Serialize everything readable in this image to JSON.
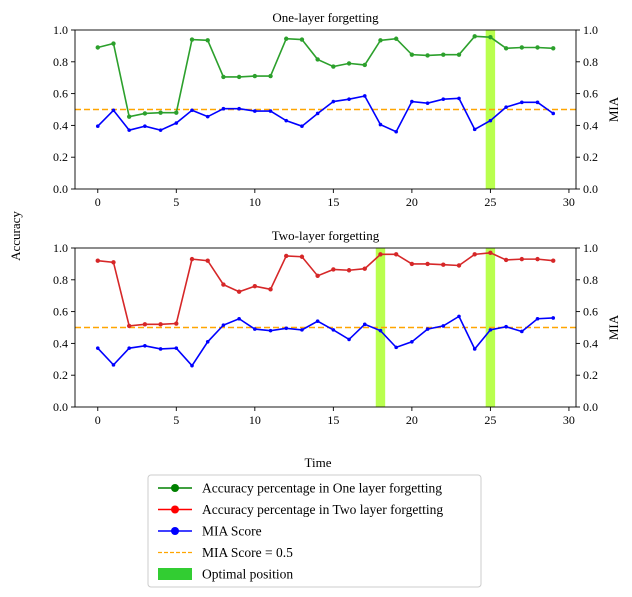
{
  "chart_data": {
    "type": "line",
    "shared_ylabel": "Accuracy",
    "shared_xlabel": "Time",
    "x_ticks": [
      0,
      5,
      10,
      15,
      20,
      25,
      30
    ],
    "y_ticks": [
      0.0,
      0.2,
      0.4,
      0.6,
      0.8,
      1.0
    ],
    "y_tick_labels": [
      "0.0",
      "0.2",
      "0.4",
      "0.6",
      "0.8",
      "1.0"
    ],
    "xlim": [
      -1.45,
      30.45
    ],
    "ylim": [
      0,
      1
    ],
    "threshold": 0.5,
    "colors": {
      "one_layer": "#2ca02c",
      "two_layer": "#d62728",
      "mia": "#0000ff",
      "threshold": "#ffa500",
      "optimal": "#adff2f"
    },
    "panels": [
      {
        "title": "One-layer forgetting",
        "right_ylabel": "MIA",
        "x": [
          0,
          1,
          2,
          3,
          4,
          5,
          6,
          7,
          8,
          9,
          10,
          11,
          12,
          13,
          14,
          15,
          16,
          17,
          18,
          19,
          20,
          21,
          22,
          23,
          24,
          25,
          26,
          27,
          28,
          29
        ],
        "accuracy": [
          0.89,
          0.915,
          0.455,
          0.475,
          0.48,
          0.48,
          0.94,
          0.935,
          0.705,
          0.705,
          0.71,
          0.71,
          0.945,
          0.94,
          0.815,
          0.77,
          0.79,
          0.78,
          0.935,
          0.945,
          0.845,
          0.84,
          0.845,
          0.845,
          0.96,
          0.955,
          0.885,
          0.89,
          0.89,
          0.885
        ],
        "mia": [
          0.395,
          0.495,
          0.37,
          0.395,
          0.37,
          0.415,
          0.495,
          0.455,
          0.505,
          0.505,
          0.49,
          0.49,
          0.43,
          0.395,
          0.475,
          0.55,
          0.565,
          0.585,
          0.405,
          0.36,
          0.55,
          0.54,
          0.565,
          0.57,
          0.375,
          0.43,
          0.515,
          0.545,
          0.545,
          0.475
        ],
        "optimal_spans": [
          [
            24.7,
            25.3
          ]
        ]
      },
      {
        "title": "Two-layer forgetting",
        "right_ylabel": "MIA",
        "x": [
          0,
          1,
          2,
          3,
          4,
          5,
          6,
          7,
          8,
          9,
          10,
          11,
          12,
          13,
          14,
          15,
          16,
          17,
          18,
          19,
          20,
          21,
          22,
          23,
          24,
          25,
          26,
          27,
          28,
          29
        ],
        "accuracy": [
          0.92,
          0.91,
          0.51,
          0.52,
          0.52,
          0.525,
          0.93,
          0.92,
          0.77,
          0.725,
          0.76,
          0.74,
          0.95,
          0.945,
          0.825,
          0.865,
          0.86,
          0.87,
          0.96,
          0.96,
          0.9,
          0.9,
          0.895,
          0.89,
          0.96,
          0.97,
          0.925,
          0.93,
          0.93,
          0.92
        ],
        "mia": [
          0.37,
          0.265,
          0.37,
          0.385,
          0.365,
          0.37,
          0.26,
          0.41,
          0.515,
          0.555,
          0.49,
          0.48,
          0.495,
          0.485,
          0.54,
          0.485,
          0.425,
          0.52,
          0.48,
          0.375,
          0.41,
          0.49,
          0.51,
          0.57,
          0.365,
          0.485,
          0.505,
          0.475,
          0.555,
          0.56
        ],
        "optimal_spans": [
          [
            17.7,
            18.3
          ],
          [
            24.7,
            25.3
          ]
        ]
      }
    ],
    "legend": [
      {
        "label": "Accuracy percentage in One layer forgetting",
        "color": "#008000",
        "kind": "marker-line"
      },
      {
        "label": "Accuracy percentage in Two layer forgetting",
        "color": "#ff0000",
        "kind": "marker-line"
      },
      {
        "label": "MIA Score",
        "color": "#0000ff",
        "kind": "marker-line"
      },
      {
        "label": "MIA Score = 0.5",
        "color": "#ffa500",
        "kind": "dashed"
      },
      {
        "label": "Optimal position",
        "color": "#32cd32",
        "kind": "patch"
      }
    ]
  }
}
